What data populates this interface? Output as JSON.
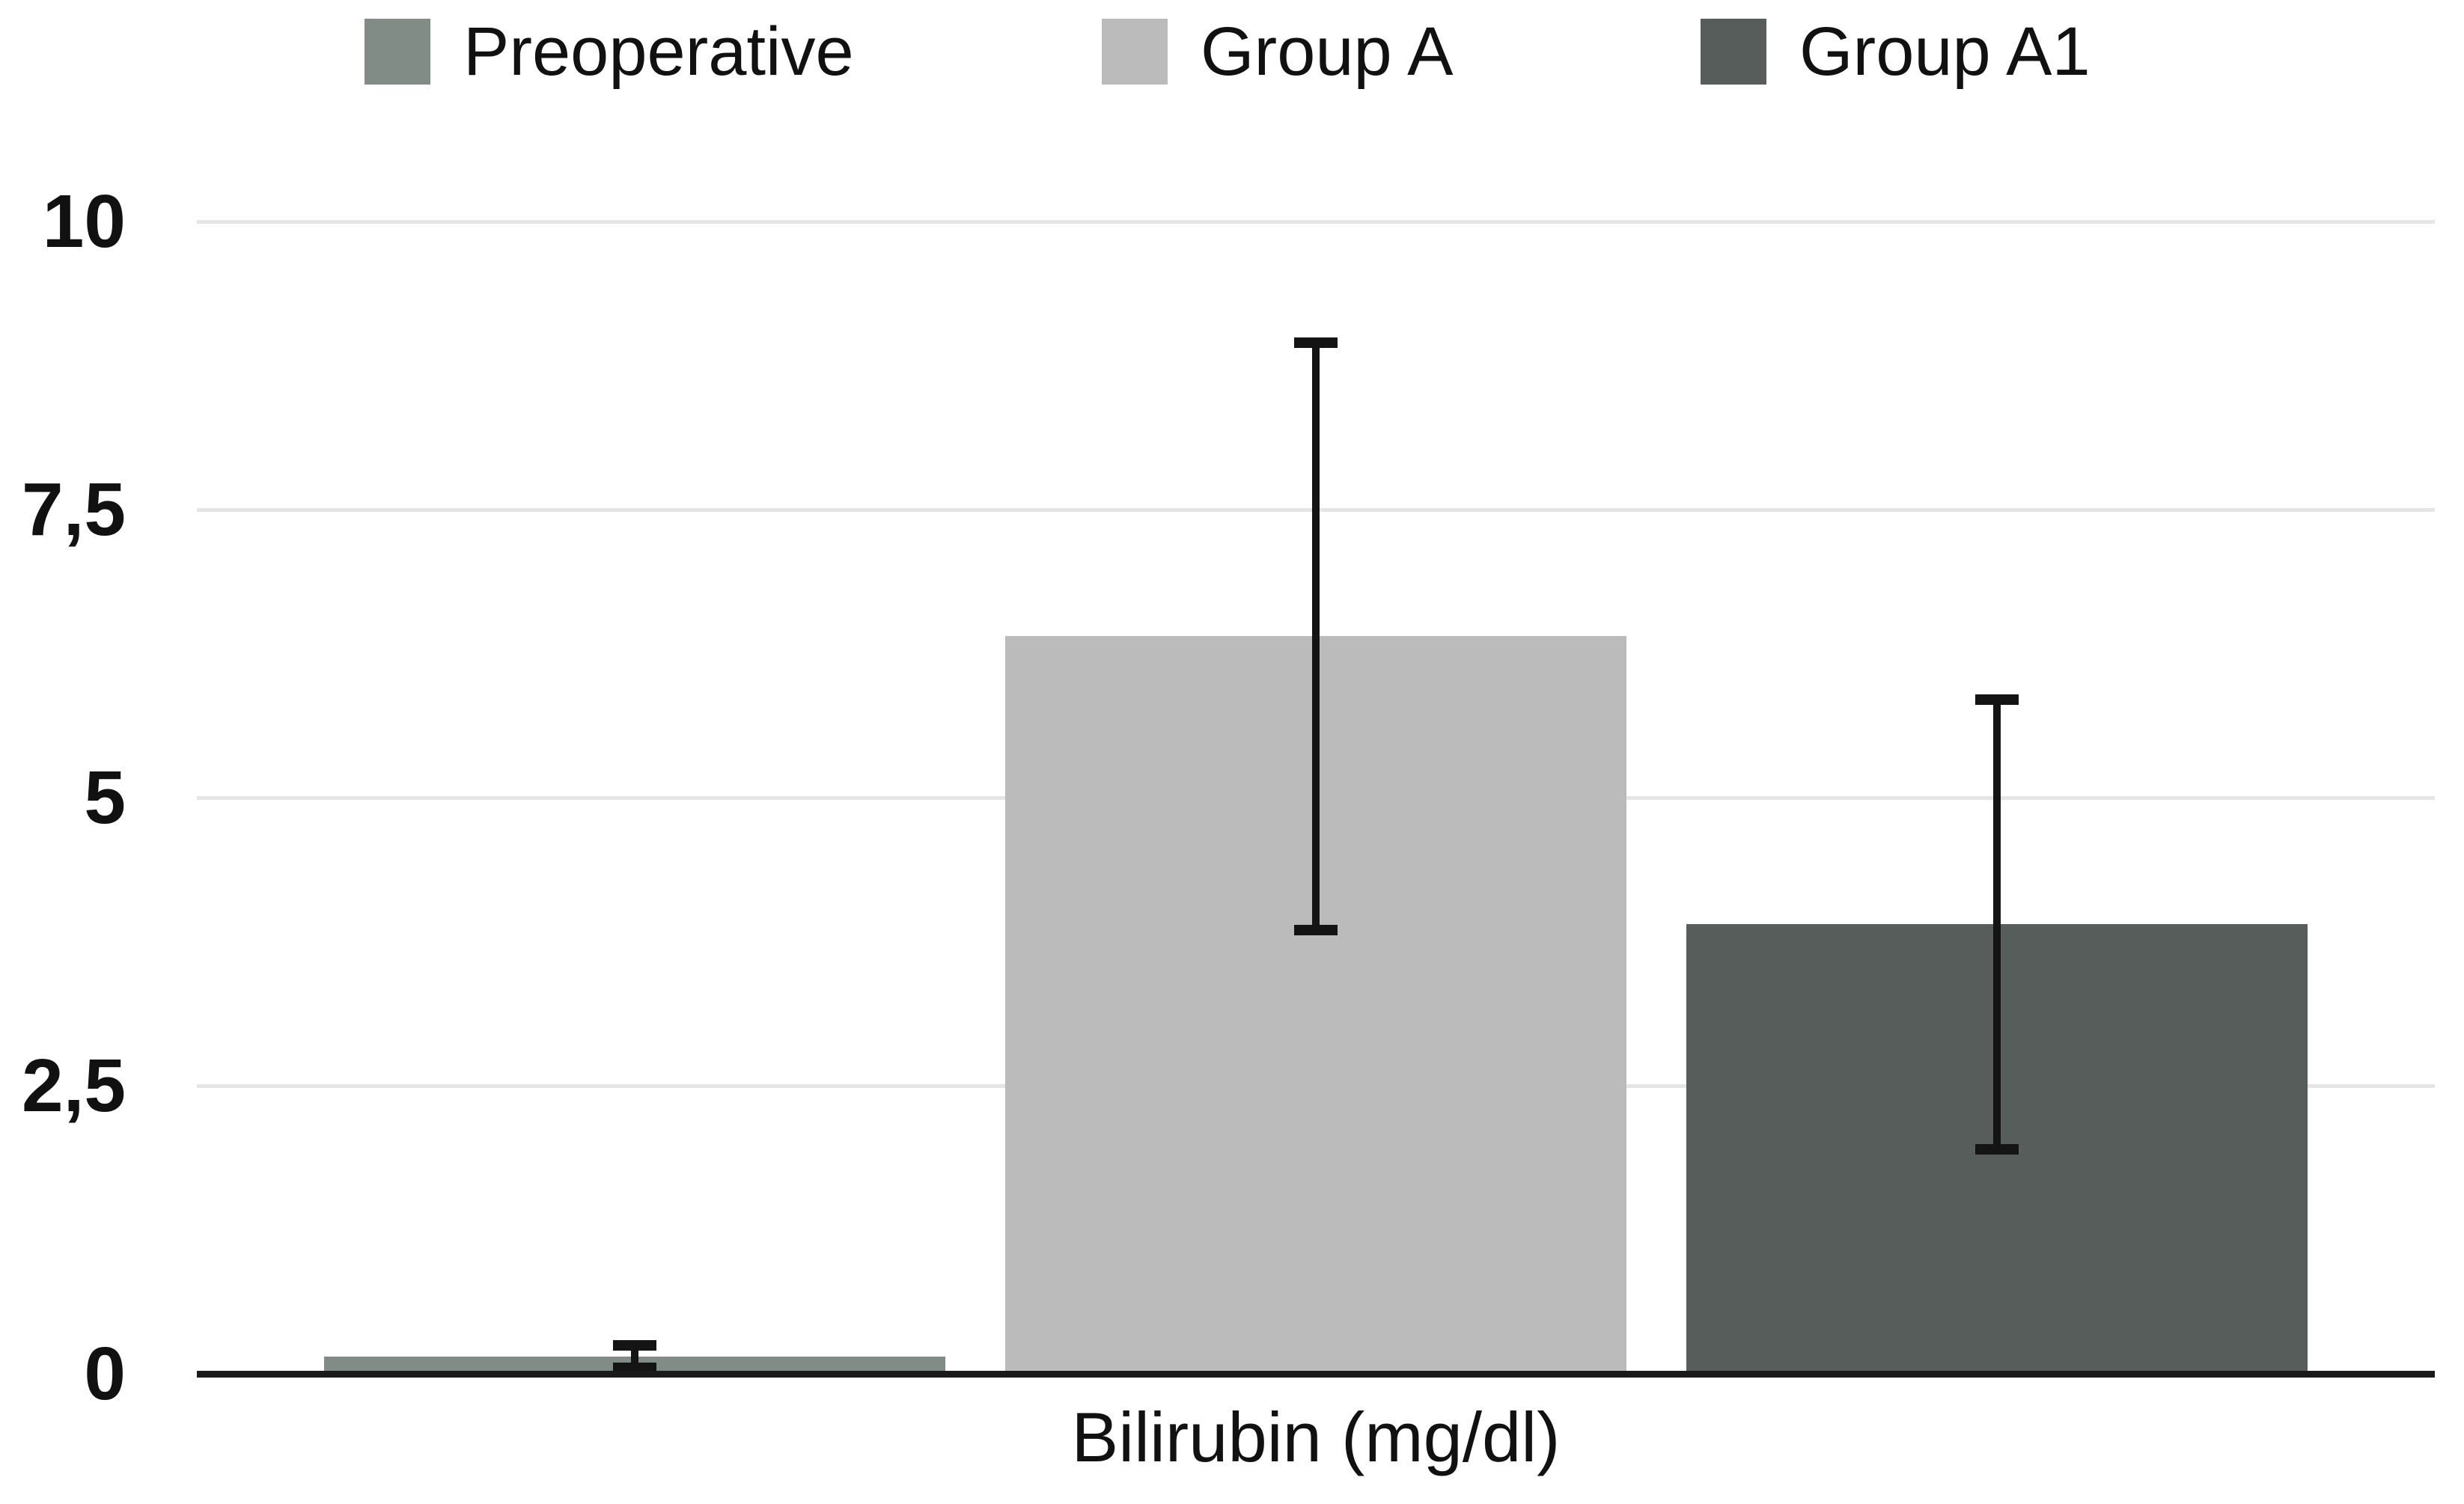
{
  "chart_data": {
    "type": "bar",
    "title": "",
    "xlabel": "Bilirubin (mg/dl)",
    "ylabel": "",
    "categories": [
      "Bilirubin (mg/dl)"
    ],
    "series": [
      {
        "name": "Preoperative",
        "value": 0.15,
        "error_low": 0.05,
        "error_high": 0.25,
        "color": "#828C86"
      },
      {
        "name": "Group A",
        "value": 6.4,
        "error_low": 3.85,
        "error_high": 8.95,
        "color": "#BBBBBB"
      },
      {
        "name": "Group A1",
        "value": 3.9,
        "error_low": 1.95,
        "error_high": 5.85,
        "color": "#575D5A"
      }
    ],
    "y_ticks": [
      {
        "value": 0,
        "label": "0"
      },
      {
        "value": 2.5,
        "label": "2,5"
      },
      {
        "value": 5,
        "label": "5"
      },
      {
        "value": 7.5,
        "label": "7,5"
      },
      {
        "value": 10,
        "label": "10"
      }
    ],
    "ylim": [
      0,
      10
    ],
    "grid": true,
    "legend_position": "top",
    "has_error_bars": true,
    "decimal_separator": ","
  },
  "colors": {
    "background": "#FFFFFF",
    "gridline": "#E5E5E5",
    "axis_line": "#1A1A1A",
    "error_bar": "#141414",
    "text": "#111111"
  }
}
